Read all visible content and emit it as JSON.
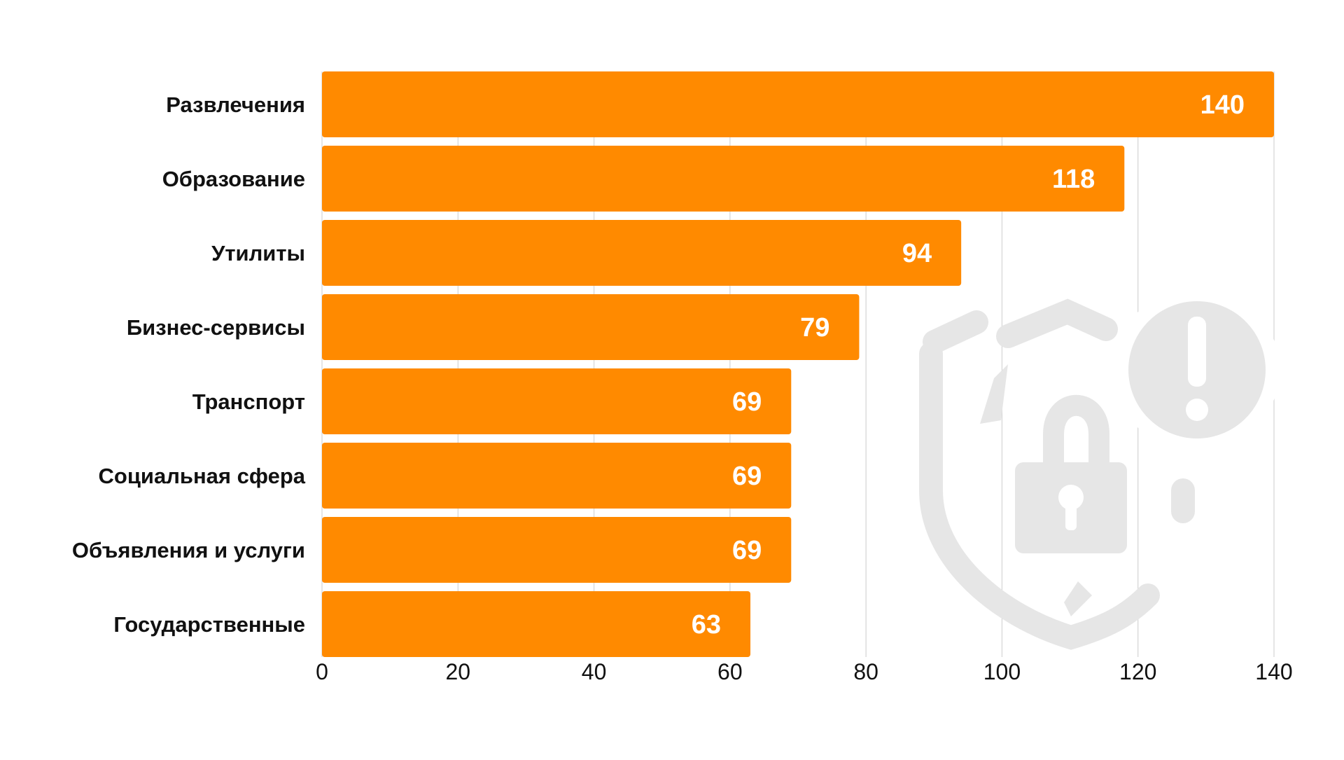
{
  "chart_data": {
    "type": "bar",
    "orientation": "horizontal",
    "categories": [
      "Развлечения",
      "Образование",
      "Утилиты",
      "Бизнес-сервисы",
      "Транспорт",
      "Социальная сфера",
      "Объявления и услуги",
      "Государственные"
    ],
    "values": [
      140,
      118,
      94,
      79,
      69,
      69,
      69,
      63
    ],
    "xlim": [
      0,
      140
    ],
    "x_ticks": [
      0,
      20,
      40,
      60,
      80,
      100,
      120,
      140
    ],
    "grid": "vertical",
    "show_data_labels": true,
    "title": "",
    "xlabel": "",
    "ylabel": ""
  },
  "colors": {
    "bar": "#ff8a00",
    "data_label": "#ffffff",
    "text": "#111111",
    "grid": "#d4d4d4",
    "watermark": "#e6e6e6"
  },
  "watermark": {
    "icon": "broken-shield-padlock-warning-icon"
  }
}
